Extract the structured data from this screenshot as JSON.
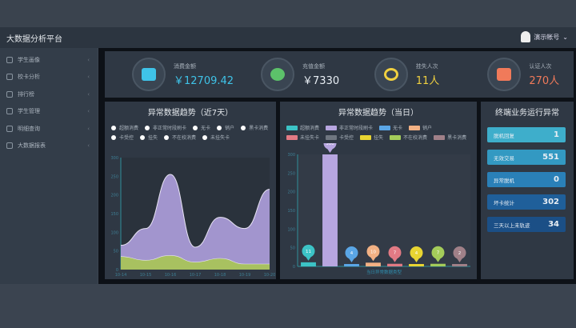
{
  "header": {
    "brand": "大数据分析平台",
    "user": "演示帐号"
  },
  "sidebar": {
    "items": [
      {
        "label": "学生画像"
      },
      {
        "label": "校卡分析"
      },
      {
        "label": "排行榜"
      },
      {
        "label": "学生管理"
      },
      {
        "label": "明细查询"
      },
      {
        "label": "大数据报表"
      }
    ]
  },
  "cards": [
    {
      "label": "消费金额",
      "value": "￥12709.42",
      "color": "#3fc3e8",
      "icon": "money-stack-icon"
    },
    {
      "label": "充值金额",
      "value": "￥7330",
      "color": "#e8eef4",
      "icon": "money-bag-icon"
    },
    {
      "label": "挂失人次",
      "value": "11人",
      "color": "#f0d040",
      "icon": "lost-search-icon"
    },
    {
      "label": "认证人次",
      "value": "270人",
      "color": "#f07a5a",
      "icon": "id-card-icon"
    }
  ],
  "left_panel": {
    "title": "异常数据趋势（近7天）",
    "legend": [
      "超额消费",
      "非正常时段刷卡",
      "无卡",
      "销户",
      "黑卡消费",
      "卡受控",
      "挂失",
      "不在校消费",
      "未挂失卡"
    ]
  },
  "right_panel": {
    "title": "异常数据趋势（当日）",
    "legend": [
      {
        "label": "超额消费",
        "color": "#3cc3c6"
      },
      {
        "label": "非正常时段刷卡",
        "color": "#b7a6e0"
      },
      {
        "label": "无卡",
        "color": "#5aa6e6"
      },
      {
        "label": "销户",
        "color": "#f2b184"
      },
      {
        "label": "未挂失卡",
        "color": "#e27a84"
      },
      {
        "label": "卡受控",
        "color": "#6f7680"
      },
      {
        "label": "挂失",
        "color": "#e8d532"
      },
      {
        "label": "不在校消费",
        "color": "#a4cc5a"
      },
      {
        "label": "黑卡消费",
        "color": "#a08088"
      }
    ],
    "xlabel": "当日异常数据类型"
  },
  "status_panel": {
    "title": "终端业务运行异常",
    "items": [
      {
        "label": "脱机回复",
        "value": "1",
        "color": "#3eaecb"
      },
      {
        "label": "无效交易",
        "value": "551",
        "color": "#3399c2"
      },
      {
        "label": "异常脱机",
        "value": "0",
        "color": "#2a80b8"
      },
      {
        "label": "坏卡统计",
        "value": "302",
        "color": "#1f5f9a"
      },
      {
        "label": "三天以上未轨迹",
        "value": "34",
        "color": "#1b4f86"
      }
    ]
  },
  "chart_data": [
    {
      "type": "area",
      "x": [
        "10-14",
        "10-15",
        "10-16",
        "10-17",
        "10-18",
        "10-19",
        "10-20"
      ],
      "ylim": [
        0,
        300
      ],
      "yticks": [
        0,
        50,
        100,
        150,
        200,
        250,
        300
      ],
      "series": [
        {
          "color": "#a99bd6",
          "values": [
            65,
            110,
            255,
            60,
            140,
            110,
            215
          ]
        },
        {
          "color": "#a9c35a",
          "values": [
            35,
            25,
            38,
            20,
            30,
            15,
            15
          ]
        }
      ]
    },
    {
      "type": "bar",
      "categories": [
        "超额消费",
        "非正常时段刷卡",
        "无卡",
        "销户",
        "未挂失卡",
        "挂失",
        "不在校消费",
        "黑卡消费"
      ],
      "values": [
        11,
        300,
        4,
        10,
        7,
        4,
        7,
        2
      ],
      "ylim": [
        0,
        300
      ],
      "yticks": [
        0,
        50,
        100,
        150,
        200,
        250,
        300
      ]
    }
  ]
}
